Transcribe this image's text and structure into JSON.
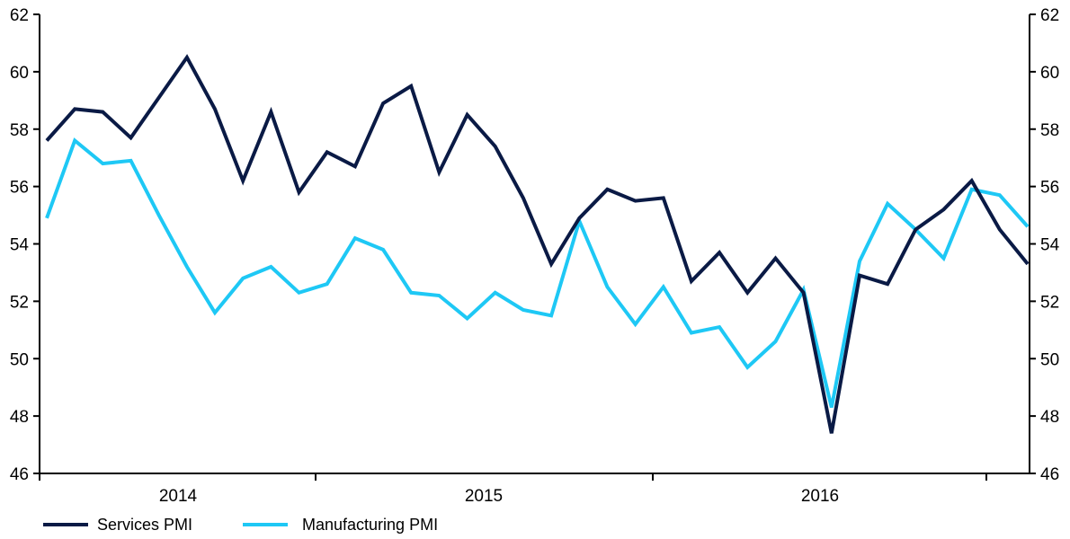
{
  "chart_data": {
    "type": "line",
    "x_ticks": [
      "2014",
      "2015",
      "2016"
    ],
    "ylim": [
      46,
      62
    ],
    "y_ticks": [
      46,
      48,
      50,
      52,
      54,
      56,
      58,
      60,
      62
    ],
    "y_axis_sides": "left and right",
    "grid": false,
    "legend_position": "bottom-left",
    "series": [
      {
        "name": "Services PMI",
        "color": "#0a1a45",
        "values": [
          57.6,
          58.7,
          58.6,
          57.7,
          59.1,
          60.5,
          58.7,
          56.2,
          58.6,
          55.8,
          57.2,
          56.7,
          58.9,
          59.5,
          56.5,
          58.5,
          57.4,
          55.6,
          53.3,
          54.9,
          55.9,
          55.5,
          55.6,
          52.7,
          53.7,
          52.3,
          53.5,
          52.3,
          47.4,
          52.9,
          52.6,
          54.5,
          55.2,
          56.2,
          54.5,
          53.3
        ]
      },
      {
        "name": "Manufacturing PMI",
        "color": "#1ec8f5",
        "values": [
          54.9,
          57.6,
          56.8,
          56.9,
          55.0,
          53.2,
          51.6,
          52.8,
          53.2,
          52.3,
          52.6,
          54.2,
          53.8,
          52.3,
          52.2,
          51.4,
          52.3,
          51.7,
          51.5,
          54.8,
          52.5,
          51.2,
          52.5,
          50.9,
          51.1,
          49.7,
          50.6,
          52.4,
          48.3,
          53.4,
          55.4,
          54.5,
          53.5,
          55.9,
          55.7,
          54.6
        ]
      }
    ]
  }
}
